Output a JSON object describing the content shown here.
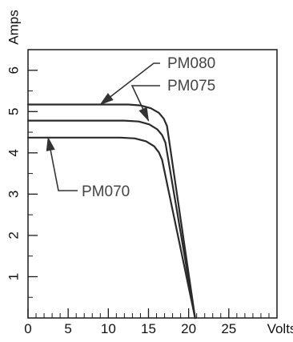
{
  "chart_data": {
    "type": "line",
    "xlabel": "Volts",
    "ylabel": "Amps",
    "xlim": [
      0,
      31
    ],
    "ylim": [
      0,
      6.5
    ],
    "x_ticks": [
      0,
      5,
      10,
      15,
      20,
      25
    ],
    "x_tick_labels": [
      "0",
      "5",
      "10",
      "15",
      "20",
      "25"
    ],
    "y_ticks": [
      1,
      2,
      3,
      4,
      5,
      6
    ],
    "y_tick_labels": [
      "1",
      "2",
      "3",
      "4",
      "5",
      "6"
    ],
    "grid": false,
    "series": [
      {
        "name": "PM080",
        "x": [
          0,
          12.5,
          14,
          15.3,
          16.3,
          16.9,
          17.3,
          20.8
        ],
        "y": [
          5.17,
          5.17,
          5.15,
          5.08,
          4.97,
          4.83,
          4.65,
          0
        ]
      },
      {
        "name": "PM075",
        "x": [
          0,
          12,
          13.8,
          15.1,
          16.1,
          16.7,
          17.1,
          20.8
        ],
        "y": [
          4.78,
          4.78,
          4.76,
          4.69,
          4.57,
          4.43,
          4.25,
          0
        ]
      },
      {
        "name": "PM070",
        "x": [
          0,
          11.5,
          13.3,
          14.7,
          15.7,
          16.3,
          16.7,
          20.8
        ],
        "y": [
          4.37,
          4.37,
          4.35,
          4.28,
          4.16,
          4.01,
          3.83,
          0
        ]
      }
    ],
    "annotations": [
      {
        "label": "PM080",
        "series": "PM080",
        "point": [
          9,
          5.17
        ],
        "text_position": "upper-right",
        "text_xy": [
          31,
          5.8
        ]
      },
      {
        "label": "PM075",
        "series": "PM075",
        "point": [
          15,
          4.78
        ],
        "text_position": "right",
        "text_xy": [
          31,
          5.4
        ]
      },
      {
        "label": "PM070",
        "series": "PM070",
        "point": [
          2.5,
          4.37
        ],
        "text_position": "below",
        "text_xy": [
          31,
          2.75
        ]
      }
    ]
  }
}
